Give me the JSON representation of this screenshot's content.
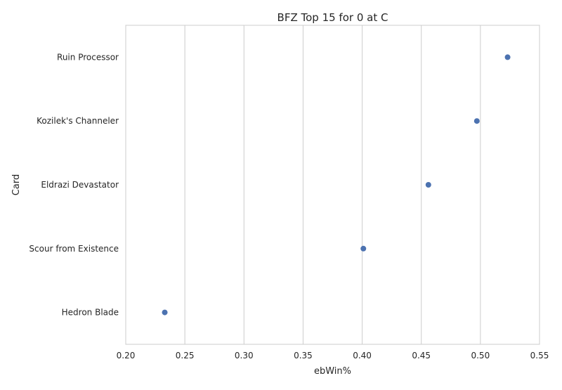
{
  "chart_data": {
    "type": "scatter",
    "title": "BFZ Top 15 for 0 at C",
    "xlabel": "ebWin%",
    "ylabel": "Card",
    "xlim": [
      0.2,
      0.55
    ],
    "xticks": [
      0.2,
      0.25,
      0.3,
      0.35,
      0.4,
      0.45,
      0.5,
      0.55
    ],
    "xtick_labels": [
      "0.20",
      "0.25",
      "0.30",
      "0.35",
      "0.40",
      "0.45",
      "0.50",
      "0.55"
    ],
    "categories": [
      "Ruin Processor",
      "Kozilek's Channeler",
      "Eldrazi Devastator",
      "Scour from Existence",
      "Hedron Blade"
    ],
    "values": [
      0.523,
      0.497,
      0.456,
      0.401,
      0.233
    ],
    "grid": "vertical",
    "point_color": "#4c72b0"
  }
}
